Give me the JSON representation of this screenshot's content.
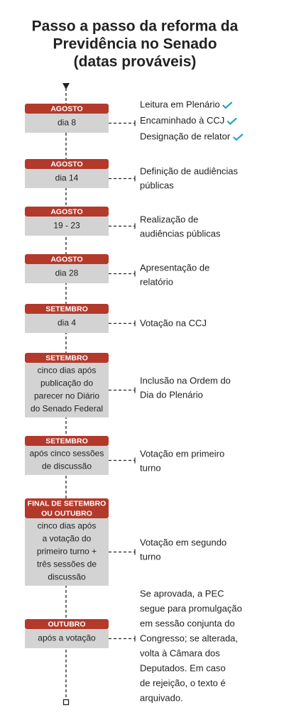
{
  "title": [
    "Passo a passo da reforma da",
    "Previdência no Senado",
    "(datas prováveis)"
  ],
  "steps": [
    {
      "month": [
        "AGOSTO"
      ],
      "date": [
        "dia 8"
      ],
      "description": [
        "Leitura em Plenário",
        "Encaminhado à CCJ",
        "Designação de relator"
      ]
    },
    {
      "month": [
        "AGOSTO"
      ],
      "date": [
        "dia 14"
      ],
      "description": [
        "Definição de audiências",
        "públicas"
      ]
    },
    {
      "month": [
        "AGOSTO"
      ],
      "date": [
        "19 - 23"
      ],
      "description": [
        "Realização de",
        "audiências públicas"
      ]
    },
    {
      "month": [
        "AGOSTO"
      ],
      "date": [
        "dia 28"
      ],
      "description": [
        "Apresentação de",
        "relatório"
      ]
    },
    {
      "month": [
        "SETEMBRO"
      ],
      "date": [
        "dia 4"
      ],
      "description": [
        "Votação na CCJ"
      ]
    },
    {
      "month": [
        "SETEMBRO"
      ],
      "date": [
        "cinco dias após",
        "publicação do",
        "parecer no Diário",
        "do Senado Federal"
      ],
      "description": [
        "Inclusão na Ordem do",
        "Dia do Plenário"
      ]
    },
    {
      "month": [
        "SETEMBRO"
      ],
      "date": [
        "após cinco sessões",
        "de discussão"
      ],
      "description": [
        "Votação em primeiro",
        "turno"
      ]
    },
    {
      "month": [
        "FINAL DE SETEMBRO",
        "OU OUTUBRO"
      ],
      "date": [
        "cinco dias após",
        "a votação do",
        "primeiro turno +",
        "três sessões de",
        "discussão"
      ],
      "description": [
        "Votação em segundo",
        "turno"
      ]
    },
    {
      "month": [
        "OUTUBRO"
      ],
      "date": [
        "após a votação"
      ],
      "description": [
        "Se aprovada, a PEC",
        "segue para promulgação",
        "em sessão conjunta do",
        "Congresso; se alterada,",
        "volta à Câmara dos",
        "Deputados. Em caso",
        "de rejeição, o texto é",
        "arquivado."
      ]
    }
  ]
}
